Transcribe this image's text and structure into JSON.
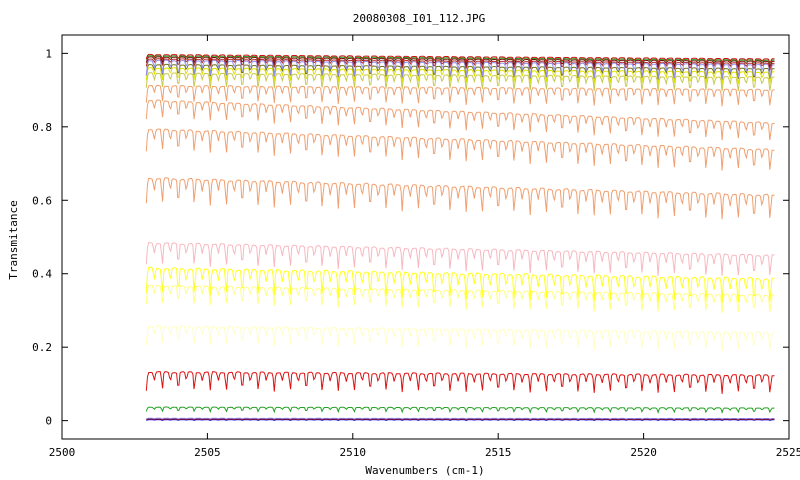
{
  "chart_data": {
    "type": "line",
    "title": "20080308_I01_112.JPG",
    "xlabel": "Wavenumbers (cm-1)",
    "ylabel": "Transmitance",
    "xlim": [
      2500,
      2525
    ],
    "ylim": [
      -0.05,
      1.05
    ],
    "xticks": [
      2500,
      2505,
      2510,
      2515,
      2520,
      2525
    ],
    "xtick_labels": [
      "2500",
      "2505",
      "2510",
      "2515",
      "2520",
      "2525"
    ],
    "yticks": [
      0,
      0.2,
      0.4,
      0.6,
      0.8,
      1
    ],
    "ytick_labels": [
      "0",
      "0.2",
      "0.4",
      "0.6",
      "0.8",
      "1"
    ],
    "grid": false,
    "legend": "none",
    "x_range_data": [
      2502.9,
      2524.5
    ],
    "line_spacing_cm1": 0.55,
    "series": [
      {
        "color": "#2a2aff",
        "base": 0.002,
        "depth": 0.002
      },
      {
        "color": "#8b0000",
        "base": 0.004,
        "depth": 0.002
      },
      {
        "color": "#8b7bdc",
        "base": 0.006,
        "depth": 0.002
      },
      {
        "color": "#22a022",
        "base": 0.035,
        "depth": 0.012
      },
      {
        "color": "#dd1111",
        "base": 0.125,
        "depth": 0.05
      },
      {
        "color": "#ffffc0",
        "base": 0.25,
        "depth": 0.05
      },
      {
        "color": "#ffff80",
        "base": 0.36,
        "depth": 0.05
      },
      {
        "color": "#ffff22",
        "base": 0.405,
        "depth": 0.07
      },
      {
        "color": "#f8b8c0",
        "base": 0.475,
        "depth": 0.06
      },
      {
        "color": "#f0a070",
        "base": 0.65,
        "depth": 0.07
      },
      {
        "color": "#f0a070",
        "base": 0.785,
        "depth": 0.06
      },
      {
        "color": "#f0a070",
        "base": 0.865,
        "depth": 0.05
      },
      {
        "color": "#f0a070",
        "base": 0.905,
        "depth": 0.045
      },
      {
        "color": "#c8c850",
        "base": 0.94,
        "depth": 0.04
      },
      {
        "color": "#e0e000",
        "base": 0.955,
        "depth": 0.035
      },
      {
        "color": "#707020",
        "base": 0.965,
        "depth": 0.03
      },
      {
        "color": "#9090ee",
        "base": 0.975,
        "depth": 0.04
      },
      {
        "color": "#b03030",
        "base": 0.982,
        "depth": 0.02
      },
      {
        "color": "#7a0a0a",
        "base": 0.988,
        "depth": 0.015
      },
      {
        "color": "#22a022",
        "base": 0.992,
        "depth": 0.01
      },
      {
        "color": "#cc1111",
        "base": 0.995,
        "depth": 0.012
      }
    ]
  }
}
